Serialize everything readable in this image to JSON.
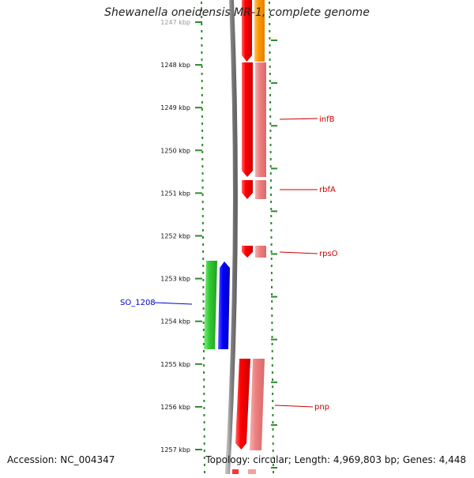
{
  "title": "Shewanella oneidensis MR-1, complete genome",
  "footer": {
    "accession": "Accession: NC_004347",
    "summary": "Topology: circular; Length: 4,969,803 bp; Genes: 4,448"
  },
  "ruler": {
    "labels": [
      "1247 kbp",
      "1248 kbp",
      "1249 kbp",
      "1250 kbp",
      "1251 kbp",
      "1252 kbp",
      "1253 kbp",
      "1254 kbp",
      "1255 kbp",
      "1256 kbp",
      "1257 kbp"
    ]
  },
  "genes": [
    {
      "label": "infB",
      "strand": "forward",
      "color": "#cc0000"
    },
    {
      "label": "rbfA",
      "strand": "forward",
      "color": "#cc0000"
    },
    {
      "label": "rpsO",
      "strand": "forward",
      "color": "#cc0000"
    },
    {
      "label": "SO_1208",
      "strand": "reverse",
      "color": "#0000cc"
    },
    {
      "label": "pnp",
      "strand": "forward",
      "color": "#cc0000"
    }
  ],
  "colors": {
    "ruler_tick": "#2d8a2d",
    "backbone": "#808080",
    "forward_cds": "#ff0000",
    "forward_cds_light": "#f08080",
    "reverse_cds": "#0000ff",
    "reverse_cds_light": "#33cc33",
    "other_feature": "#ff9900"
  }
}
